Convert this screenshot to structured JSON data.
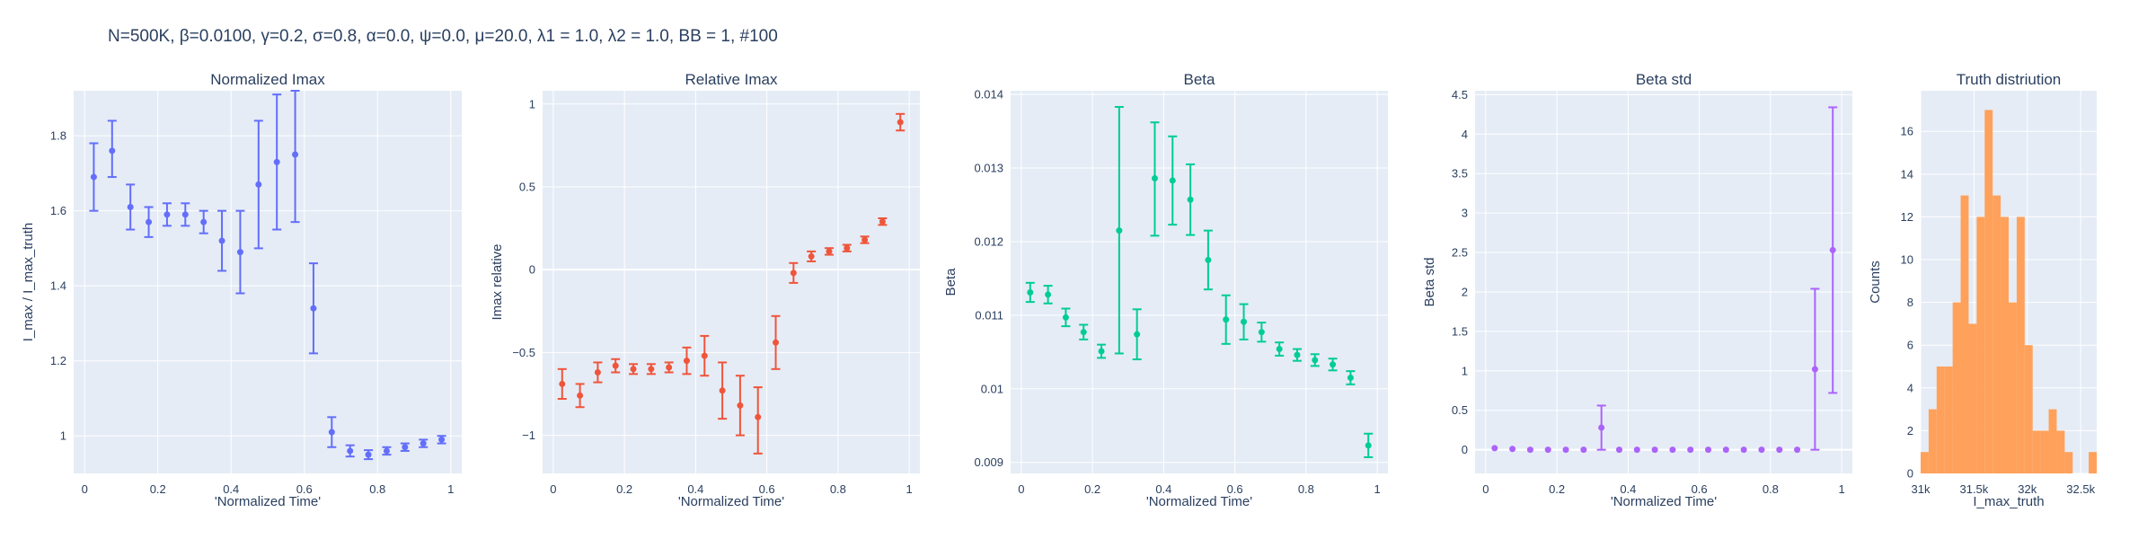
{
  "figure": {
    "suptitle": "N=500K, β=0.0100, γ=0.2, σ=0.8,  α=0.0, ψ=0.0, μ=20.0, λ1 = 1.0, λ2 = 1.0, BB = 1, #100",
    "colors": {
      "plot_bg": "#e5ecf6",
      "grid": "#ffffff",
      "text": "#2a3f5f"
    }
  },
  "chart_data": [
    {
      "type": "scatter",
      "title": "Normalized Imax",
      "xlabel": "'Normalized Time'",
      "ylabel": "I_max / I_max_truth",
      "color": "#636efa",
      "xlim": [
        -0.03,
        1.03
      ],
      "ylim": [
        0.9,
        1.92
      ],
      "xticks": [
        0,
        0.2,
        0.4,
        0.6,
        0.8,
        1
      ],
      "xtick_labels": [
        "0",
        "0.2",
        "0.4",
        "0.6",
        "0.8",
        "1"
      ],
      "yticks": [
        1,
        1.2,
        1.4,
        1.6,
        1.8
      ],
      "ytick_labels": [
        "1",
        "1.2",
        "1.4",
        "1.6",
        "1.8"
      ],
      "x": [
        0.025,
        0.075,
        0.125,
        0.175,
        0.225,
        0.275,
        0.325,
        0.375,
        0.425,
        0.475,
        0.525,
        0.575,
        0.625,
        0.675,
        0.725,
        0.775,
        0.825,
        0.875,
        0.925,
        0.975
      ],
      "y": [
        1.69,
        1.76,
        1.61,
        1.57,
        1.59,
        1.59,
        1.57,
        1.52,
        1.49,
        1.67,
        1.73,
        1.75,
        1.34,
        1.01,
        0.96,
        0.95,
        0.96,
        0.97,
        0.98,
        0.99
      ],
      "err_plus": [
        0.09,
        0.08,
        0.06,
        0.04,
        0.03,
        0.03,
        0.03,
        0.08,
        0.11,
        0.17,
        0.18,
        0.17,
        0.12,
        0.04,
        0.015,
        0.012,
        0.01,
        0.01,
        0.01,
        0.01
      ],
      "err_minus": [
        0.09,
        0.07,
        0.06,
        0.04,
        0.03,
        0.03,
        0.03,
        0.08,
        0.11,
        0.17,
        0.18,
        0.18,
        0.12,
        0.04,
        0.015,
        0.012,
        0.01,
        0.01,
        0.01,
        0.01
      ]
    },
    {
      "type": "scatter",
      "title": "Relative Imax",
      "xlabel": "'Normalized Time'",
      "ylabel": "Imax relative",
      "color": "#ef553b",
      "xlim": [
        -0.03,
        1.03
      ],
      "ylim": [
        -1.23,
        1.08
      ],
      "xticks": [
        0,
        0.2,
        0.4,
        0.6,
        0.8,
        1
      ],
      "xtick_labels": [
        "0",
        "0.2",
        "0.4",
        "0.6",
        "0.8",
        "1"
      ],
      "yticks": [
        -1,
        -0.5,
        0,
        0.5,
        1
      ],
      "ytick_labels": [
        "−1",
        "−0.5",
        "0",
        "0.5",
        "1"
      ],
      "x": [
        0.025,
        0.075,
        0.125,
        0.175,
        0.225,
        0.275,
        0.325,
        0.375,
        0.425,
        0.475,
        0.525,
        0.575,
        0.625,
        0.675,
        0.725,
        0.775,
        0.825,
        0.875,
        0.925,
        0.975
      ],
      "y": [
        -0.69,
        -0.76,
        -0.62,
        -0.58,
        -0.6,
        -0.6,
        -0.59,
        -0.55,
        -0.52,
        -0.73,
        -0.82,
        -0.89,
        -0.44,
        -0.02,
        0.08,
        0.11,
        0.13,
        0.18,
        0.29,
        0.89
      ],
      "err_plus": [
        0.09,
        0.07,
        0.06,
        0.04,
        0.03,
        0.03,
        0.03,
        0.08,
        0.12,
        0.17,
        0.18,
        0.18,
        0.16,
        0.06,
        0.03,
        0.02,
        0.02,
        0.02,
        0.02,
        0.05
      ],
      "err_minus": [
        0.09,
        0.07,
        0.06,
        0.04,
        0.03,
        0.03,
        0.03,
        0.08,
        0.12,
        0.17,
        0.18,
        0.22,
        0.16,
        0.06,
        0.03,
        0.02,
        0.02,
        0.02,
        0.02,
        0.05
      ]
    },
    {
      "type": "scatter",
      "title": "Beta",
      "xlabel": "'Normalized Time'",
      "ylabel": "Beta",
      "color": "#00cc96",
      "xlim": [
        -0.03,
        1.03
      ],
      "ylim": [
        0.00885,
        0.01405
      ],
      "xticks": [
        0,
        0.2,
        0.4,
        0.6,
        0.8,
        1
      ],
      "xtick_labels": [
        "0",
        "0.2",
        "0.4",
        "0.6",
        "0.8",
        "1"
      ],
      "yticks": [
        0.009,
        0.01,
        0.011,
        0.012,
        0.013,
        0.014
      ],
      "ytick_labels": [
        "0.009",
        "0.01",
        "0.011",
        "0.012",
        "0.013",
        "0.014"
      ],
      "x": [
        0.025,
        0.075,
        0.125,
        0.175,
        0.225,
        0.275,
        0.325,
        0.375,
        0.425,
        0.475,
        0.525,
        0.575,
        0.625,
        0.675,
        0.725,
        0.775,
        0.825,
        0.875,
        0.925,
        0.975
      ],
      "y": [
        0.01131,
        0.01128,
        0.01097,
        0.01077,
        0.01051,
        0.01215,
        0.01074,
        0.01286,
        0.01283,
        0.01257,
        0.01175,
        0.01094,
        0.01091,
        0.01077,
        0.01054,
        0.01046,
        0.01039,
        0.01033,
        0.01015,
        0.00923
      ],
      "err_plus": [
        0.00013,
        0.00012,
        0.00012,
        0.0001,
        9e-05,
        0.00168,
        0.00034,
        0.00076,
        0.0006,
        0.00048,
        0.0004,
        0.00033,
        0.00024,
        0.00013,
        9e-05,
        8e-05,
        8e-05,
        8e-05,
        9e-05,
        0.00016
      ],
      "err_minus": [
        0.00013,
        0.00012,
        0.00012,
        0.0001,
        9e-05,
        0.00167,
        0.00034,
        0.00078,
        0.0006,
        0.00048,
        0.0004,
        0.00033,
        0.00024,
        0.00013,
        9e-05,
        8e-05,
        8e-05,
        8e-05,
        9e-05,
        0.00016
      ]
    },
    {
      "type": "scatter",
      "title": "Beta std",
      "xlabel": "'Normalized Time'",
      "ylabel": "Beta std",
      "color": "#ab63fa",
      "xlim": [
        -0.03,
        1.03
      ],
      "ylim": [
        -0.3,
        4.55
      ],
      "xticks": [
        0,
        0.2,
        0.4,
        0.6,
        0.8,
        1
      ],
      "xtick_labels": [
        "0",
        "0.2",
        "0.4",
        "0.6",
        "0.8",
        "1"
      ],
      "yticks": [
        0,
        0.5,
        1,
        1.5,
        2,
        2.5,
        3,
        3.5,
        4,
        4.5
      ],
      "ytick_labels": [
        "0",
        "0.5",
        "1",
        "1.5",
        "2",
        "2.5",
        "3",
        "3.5",
        "4",
        "4.5"
      ],
      "x": [
        0.025,
        0.075,
        0.125,
        0.175,
        0.225,
        0.275,
        0.325,
        0.375,
        0.425,
        0.475,
        0.525,
        0.575,
        0.625,
        0.675,
        0.725,
        0.775,
        0.825,
        0.875,
        0.925,
        0.975
      ],
      "y": [
        0.02,
        0.01,
        0.0,
        0.0,
        0.0,
        0.0,
        0.28,
        0.0,
        0.0,
        0.0,
        0.0,
        0.0,
        0.0,
        0.0,
        0.0,
        0.0,
        0.0,
        0.0,
        1.02,
        2.53
      ],
      "err_plus": [
        0,
        0,
        0,
        0,
        0,
        0,
        0.28,
        0,
        0,
        0,
        0,
        0,
        0,
        0,
        0,
        0,
        0,
        0,
        1.02,
        1.81
      ],
      "err_minus": [
        0,
        0,
        0,
        0,
        0,
        0,
        0.28,
        0,
        0,
        0,
        0,
        0,
        0,
        0,
        0,
        0,
        0,
        0,
        1.02,
        1.81
      ]
    },
    {
      "type": "bar",
      "title": "Truth distriution",
      "xlabel": "I_max_truth",
      "ylabel": "Counts",
      "color": "#ffa15a",
      "xlim": [
        31000,
        32650
      ],
      "ylim": [
        0,
        17.9
      ],
      "xticks": [
        31000,
        31500,
        32000,
        32500
      ],
      "xtick_labels": [
        "31k",
        "31.5k",
        "32k",
        "32.5k"
      ],
      "yticks": [
        0,
        2,
        4,
        6,
        8,
        10,
        12,
        14,
        16
      ],
      "ytick_labels": [
        "0",
        "2",
        "4",
        "6",
        "8",
        "10",
        "12",
        "14",
        "16"
      ],
      "bin_size": 75,
      "bin_starts": [
        31000,
        31075,
        31150,
        31225,
        31300,
        31375,
        31450,
        31525,
        31600,
        31675,
        31750,
        31825,
        31900,
        31975,
        32050,
        32125,
        32200,
        32275,
        32350,
        32425,
        32500,
        32575
      ],
      "counts": [
        1,
        3,
        5,
        5,
        8,
        13,
        7,
        12,
        17,
        13,
        12,
        8,
        12,
        6,
        2,
        2,
        3,
        2,
        1,
        0,
        0,
        1
      ]
    }
  ]
}
